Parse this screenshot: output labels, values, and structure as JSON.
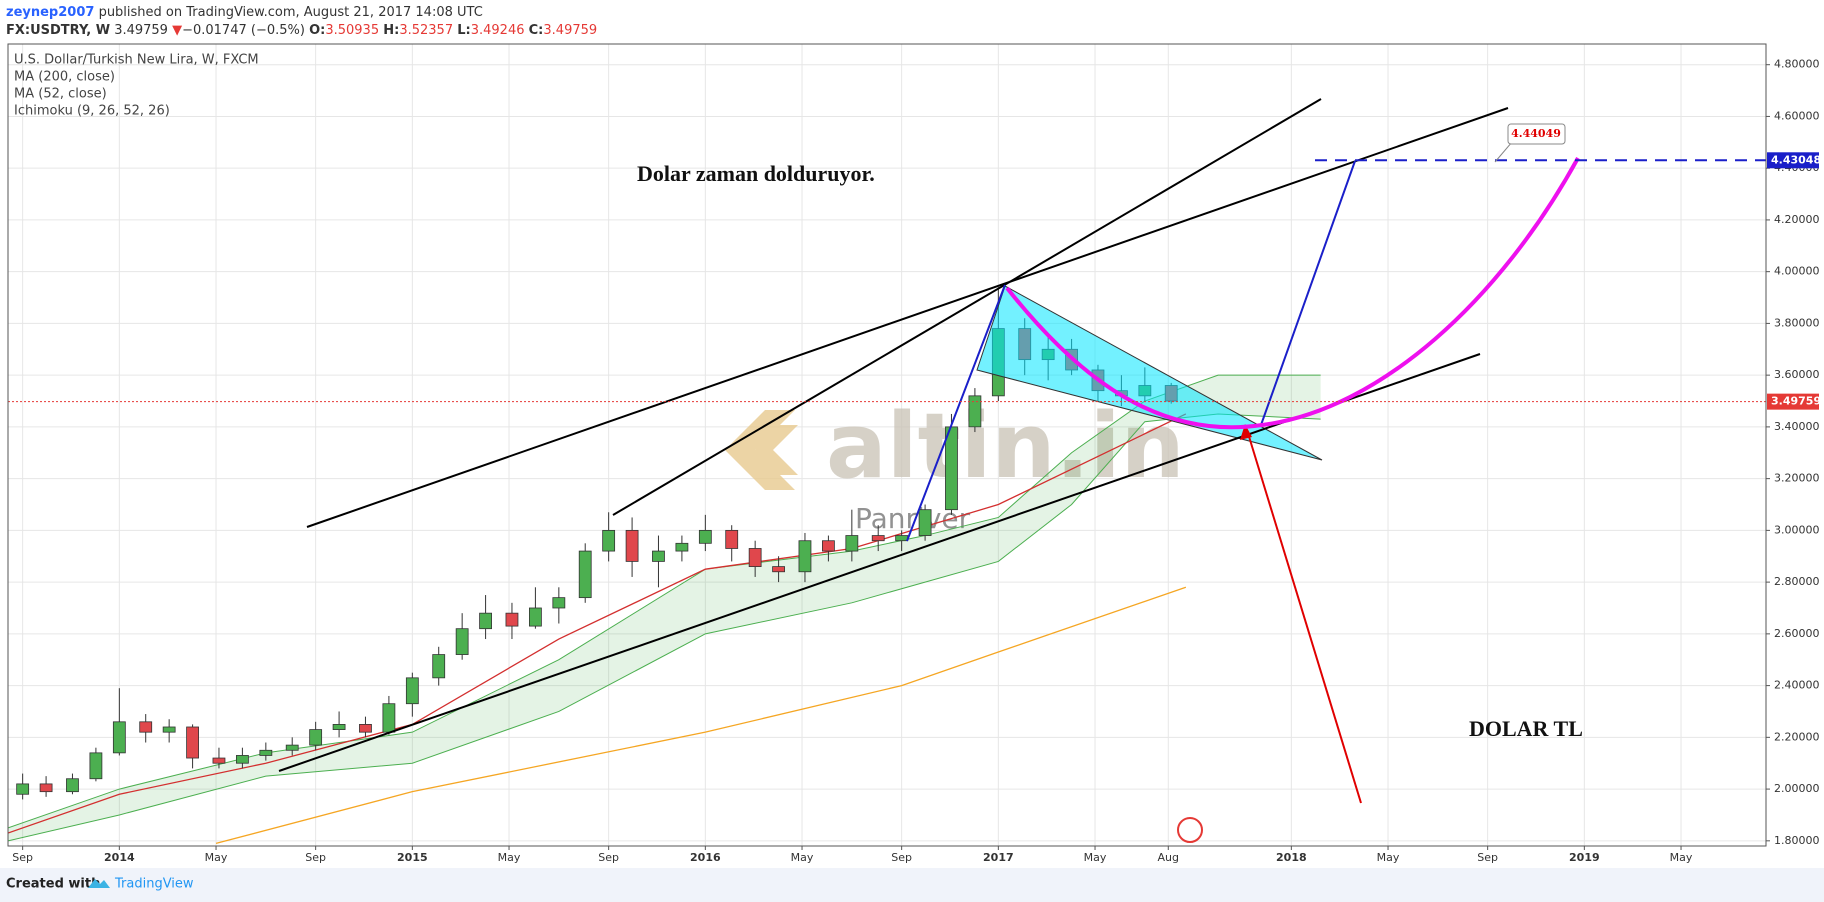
{
  "header": {
    "author": "zeynep2007",
    "published": "published on TradingView.com, August 21, 2017 14:08 UTC",
    "symbol": "FX:USDTRY, W",
    "last": "3.49759",
    "arrow": "▼",
    "change": "−0.01747 (−0.5%)",
    "open_label": "O:",
    "open": "3.50935",
    "high_label": "H:",
    "high": "3.52357",
    "low_label": "L:",
    "low": "3.49246",
    "close_label": "C:",
    "close": "3.49759"
  },
  "chart_data": {
    "type": "candlestick",
    "legend_title": "U.S. Dollar/Turkish New Lira, W, FXCM",
    "x": [
      2013.67,
      2013.75,
      2013.84,
      2013.92,
      2014.0,
      2014.09,
      2014.17,
      2014.25,
      2014.34,
      2014.42,
      2014.5,
      2014.59,
      2014.67,
      2014.75,
      2014.84,
      2014.92,
      2015.0,
      2015.09,
      2015.17,
      2015.25,
      2015.34,
      2015.42,
      2015.5,
      2015.59,
      2015.67,
      2015.75,
      2015.84,
      2015.92,
      2016.0,
      2016.09,
      2016.17,
      2016.25,
      2016.34,
      2016.42,
      2016.5,
      2016.59,
      2016.67,
      2016.75,
      2016.84,
      2016.92,
      2017.0,
      2017.09,
      2017.17,
      2017.25,
      2017.34,
      2017.42,
      2017.5,
      2017.59
    ],
    "open": [
      1.98,
      2.02,
      1.99,
      2.04,
      2.14,
      2.26,
      2.22,
      2.24,
      2.12,
      2.1,
      2.13,
      2.15,
      2.17,
      2.23,
      2.25,
      2.22,
      2.33,
      2.43,
      2.52,
      2.62,
      2.68,
      2.63,
      2.7,
      2.74,
      2.92,
      3.0,
      2.88,
      2.92,
      2.95,
      3.0,
      2.93,
      2.86,
      2.84,
      2.96,
      2.92,
      2.98,
      2.96,
      2.98,
      3.08,
      3.4,
      3.52,
      3.78,
      3.66,
      3.7,
      3.62,
      3.54,
      3.52,
      3.56
    ],
    "high": [
      2.06,
      2.05,
      2.06,
      2.16,
      2.39,
      2.29,
      2.27,
      2.25,
      2.16,
      2.16,
      2.18,
      2.2,
      2.26,
      2.3,
      2.28,
      2.36,
      2.45,
      2.55,
      2.68,
      2.75,
      2.72,
      2.78,
      2.78,
      2.95,
      3.07,
      3.05,
      2.98,
      2.98,
      3.06,
      3.02,
      2.96,
      2.9,
      2.99,
      2.98,
      3.08,
      3.02,
      3.0,
      3.1,
      3.45,
      3.55,
      3.94,
      3.82,
      3.75,
      3.74,
      3.64,
      3.6,
      3.63,
      3.57
    ],
    "low": [
      1.96,
      1.97,
      1.98,
      2.03,
      2.13,
      2.18,
      2.18,
      2.08,
      2.08,
      2.08,
      2.11,
      2.13,
      2.15,
      2.2,
      2.2,
      2.21,
      2.28,
      2.4,
      2.5,
      2.58,
      2.58,
      2.62,
      2.64,
      2.72,
      2.88,
      2.82,
      2.78,
      2.88,
      2.92,
      2.88,
      2.82,
      2.8,
      2.8,
      2.88,
      2.88,
      2.92,
      2.92,
      2.96,
      3.06,
      3.38,
      3.5,
      3.6,
      3.58,
      3.6,
      3.5,
      3.48,
      3.5,
      3.49
    ],
    "close": [
      2.02,
      1.99,
      2.04,
      2.14,
      2.26,
      2.22,
      2.24,
      2.12,
      2.1,
      2.13,
      2.15,
      2.17,
      2.23,
      2.25,
      2.22,
      2.33,
      2.43,
      2.52,
      2.62,
      2.68,
      2.63,
      2.7,
      2.74,
      2.92,
      3.0,
      2.88,
      2.92,
      2.95,
      3.0,
      2.93,
      2.86,
      2.84,
      2.96,
      2.92,
      2.98,
      2.96,
      2.98,
      3.08,
      3.4,
      3.52,
      3.78,
      3.66,
      3.7,
      3.62,
      3.54,
      3.52,
      3.56,
      3.5
    ],
    "up_color": "#4caf50",
    "down_color": "#e0474c",
    "series": [
      {
        "name": "MA (200, close)",
        "color": "#f5a623",
        "x": [
          2014.33,
          2015.0,
          2016.0,
          2016.67,
          2017.0,
          2017.64
        ],
        "values": [
          1.79,
          1.99,
          2.22,
          2.4,
          2.53,
          2.78
        ]
      },
      {
        "name": "MA (52, close)",
        "color": "#d32f2f",
        "x": [
          2013.62,
          2014.0,
          2014.5,
          2015.0,
          2015.5,
          2016.0,
          2016.5,
          2017.0,
          2017.64
        ],
        "values": [
          1.83,
          1.98,
          2.1,
          2.25,
          2.58,
          2.85,
          2.93,
          3.1,
          3.45
        ]
      }
    ],
    "cloud": {
      "name": "Ichimoku (9, 26, 52, 26)",
      "color": "#4caf50",
      "x": [
        2013.62,
        2014.0,
        2014.5,
        2015.0,
        2015.5,
        2016.0,
        2016.5,
        2016.75,
        2017.0,
        2017.25,
        2017.5,
        2017.75,
        2018.1
      ],
      "upper": [
        1.85,
        2.0,
        2.14,
        2.22,
        2.5,
        2.85,
        2.92,
        2.98,
        3.05,
        3.3,
        3.5,
        3.6,
        3.6
      ],
      "lower": [
        1.8,
        1.9,
        2.05,
        2.1,
        2.3,
        2.6,
        2.72,
        2.8,
        2.88,
        3.1,
        3.42,
        3.45,
        3.43
      ]
    },
    "price_lines": [
      {
        "value": 3.49759,
        "label": "3.49759",
        "color": "#e53935",
        "style": "dotted"
      },
      {
        "value": 4.43048,
        "label": "4.43048",
        "color": "#1a1fc9",
        "style": "dashed"
      }
    ],
    "xlim": [
      2013.62,
      2019.62
    ],
    "ylim": [
      1.78,
      4.88
    ],
    "xticks": [
      {
        "value": 2013.67,
        "label": "Sep"
      },
      {
        "value": 2014,
        "label": "2014"
      },
      {
        "value": 2014.33,
        "label": "May"
      },
      {
        "value": 2014.67,
        "label": "Sep"
      },
      {
        "value": 2015,
        "label": "2015"
      },
      {
        "value": 2015.33,
        "label": "May"
      },
      {
        "value": 2015.67,
        "label": "Sep"
      },
      {
        "value": 2016,
        "label": "2016"
      },
      {
        "value": 2016.33,
        "label": "May"
      },
      {
        "value": 2016.67,
        "label": "Sep"
      },
      {
        "value": 2017,
        "label": "2017"
      },
      {
        "value": 2017.33,
        "label": "May"
      },
      {
        "value": 2017.58,
        "label": "Aug"
      },
      {
        "value": 2018,
        "label": "2018"
      },
      {
        "value": 2018.33,
        "label": "May"
      },
      {
        "value": 2018.67,
        "label": "Sep"
      },
      {
        "value": 2019,
        "label": "2019"
      },
      {
        "value": 2019.33,
        "label": "May"
      }
    ],
    "yticks": [
      {
        "value": 1.8,
        "label": "1.80000"
      },
      {
        "value": 2.0,
        "label": "2.00000"
      },
      {
        "value": 2.2,
        "label": "2.20000"
      },
      {
        "value": 2.4,
        "label": "2.40000"
      },
      {
        "value": 2.6,
        "label": "2.60000"
      },
      {
        "value": 2.8,
        "label": "2.80000"
      },
      {
        "value": 3.0,
        "label": "3.00000"
      },
      {
        "value": 3.2,
        "label": "3.20000"
      },
      {
        "value": 3.4,
        "label": "3.40000"
      },
      {
        "value": 3.6,
        "label": "3.60000"
      },
      {
        "value": 3.8,
        "label": "3.80000"
      },
      {
        "value": 4.0,
        "label": "4.00000"
      },
      {
        "value": 4.2,
        "label": "4.20000"
      },
      {
        "value": 4.4,
        "label": "4.40000"
      },
      {
        "value": 4.6,
        "label": "4.60000"
      },
      {
        "value": 4.8,
        "label": "4.80000"
      }
    ],
    "grid": true,
    "annotations": {
      "headline": "Dolar zaman dolduruyor.",
      "label": "DOLAR TL",
      "callout": "4.44049"
    },
    "watermark": {
      "brand": "altin.in",
      "author": "Panriver"
    }
  },
  "footer": {
    "created": "Created with",
    "brand": "TradingView"
  }
}
